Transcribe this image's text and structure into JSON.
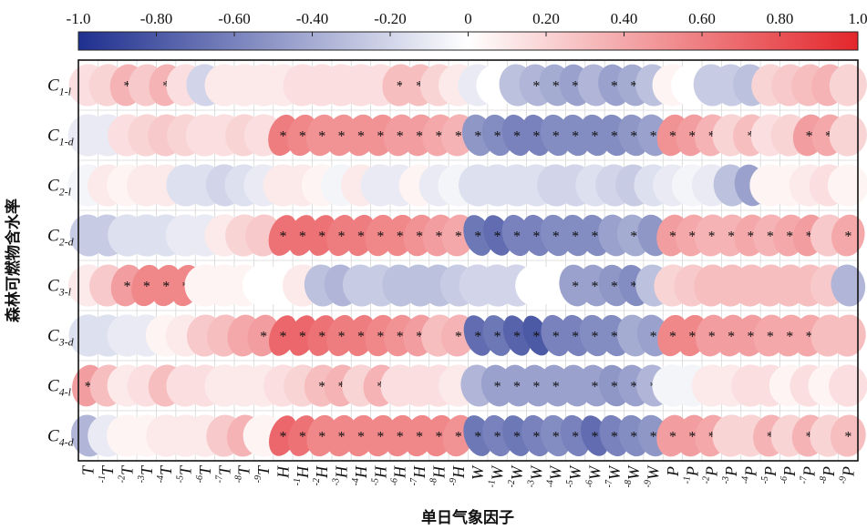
{
  "chart_data": {
    "type": "heatmap",
    "xlabel": "单日气象因子",
    "ylabel": "森林可燃物含水率",
    "colorbar": {
      "ticks": [
        "-1.0",
        "-0.80",
        "-0.60",
        "-0.40",
        "-0.20",
        "0",
        "0.20",
        "0.40",
        "0.60",
        "0.80",
        "1.0"
      ],
      "range": [
        -1,
        1
      ],
      "colors": {
        "neg": "#1f2f8f",
        "mid": "#ffffff",
        "pos": "#e3262b"
      }
    },
    "rows": [
      {
        "base": "C",
        "sub": "1-l"
      },
      {
        "base": "C",
        "sub": "1-d"
      },
      {
        "base": "C",
        "sub": "2-l"
      },
      {
        "base": "C",
        "sub": "2-d"
      },
      {
        "base": "C",
        "sub": "3-l"
      },
      {
        "base": "C",
        "sub": "3-d"
      },
      {
        "base": "C",
        "sub": "4-l"
      },
      {
        "base": "C",
        "sub": "4-d"
      }
    ],
    "columns": [
      {
        "base": "T",
        "sup": ""
      },
      {
        "base": "T",
        "sup": "-1"
      },
      {
        "base": "T",
        "sup": "-2"
      },
      {
        "base": "T",
        "sup": "-3"
      },
      {
        "base": "T",
        "sup": "-4"
      },
      {
        "base": "T",
        "sup": "-5"
      },
      {
        "base": "T",
        "sup": "-6"
      },
      {
        "base": "T",
        "sup": "-7"
      },
      {
        "base": "T",
        "sup": "-8"
      },
      {
        "base": "T",
        "sup": "-9"
      },
      {
        "base": "H",
        "sup": ""
      },
      {
        "base": "H",
        "sup": "-1"
      },
      {
        "base": "H",
        "sup": "-2"
      },
      {
        "base": "H",
        "sup": "-3"
      },
      {
        "base": "H",
        "sup": "-4"
      },
      {
        "base": "H",
        "sup": "-5"
      },
      {
        "base": "H",
        "sup": "-6"
      },
      {
        "base": "H",
        "sup": "-7"
      },
      {
        "base": "H",
        "sup": "-8"
      },
      {
        "base": "H",
        "sup": "-9"
      },
      {
        "base": "W",
        "sup": ""
      },
      {
        "base": "W",
        "sup": "-1"
      },
      {
        "base": "W",
        "sup": "-2"
      },
      {
        "base": "W",
        "sup": "-3"
      },
      {
        "base": "W",
        "sup": "-4"
      },
      {
        "base": "W",
        "sup": "-5"
      },
      {
        "base": "W",
        "sup": "-6"
      },
      {
        "base": "W",
        "sup": "-7"
      },
      {
        "base": "W",
        "sup": "-8"
      },
      {
        "base": "W",
        "sup": "-9"
      },
      {
        "base": "P",
        "sup": ""
      },
      {
        "base": "P",
        "sup": "-1"
      },
      {
        "base": "P",
        "sup": "-2"
      },
      {
        "base": "P",
        "sup": "-3"
      },
      {
        "base": "P",
        "sup": "-4"
      },
      {
        "base": "P",
        "sup": "-5"
      },
      {
        "base": "P",
        "sup": "-6"
      },
      {
        "base": "P",
        "sup": "-7"
      },
      {
        "base": "P",
        "sup": "-8"
      },
      {
        "base": "P",
        "sup": "-9"
      }
    ],
    "values": [
      [
        0.15,
        0.2,
        0.35,
        0.25,
        0.35,
        0.15,
        -0.2,
        0.1,
        0.1,
        0.1,
        0.1,
        0.15,
        0.15,
        0.15,
        0.15,
        0.15,
        0.3,
        0.3,
        0.2,
        0.1,
        -0.1,
        0.0,
        -0.3,
        -0.35,
        -0.4,
        -0.45,
        -0.35,
        -0.45,
        -0.4,
        -0.3,
        0.05,
        0.0,
        -0.25,
        -0.25,
        -0.3,
        0.2,
        0.25,
        0.3,
        0.35,
        0.2
      ],
      [
        -0.1,
        -0.1,
        0.15,
        0.2,
        0.25,
        0.2,
        0.15,
        0.15,
        0.2,
        0.15,
        0.6,
        0.55,
        0.5,
        0.5,
        0.5,
        0.5,
        0.45,
        0.45,
        0.4,
        0.35,
        -0.5,
        -0.55,
        -0.6,
        -0.6,
        -0.55,
        -0.55,
        -0.55,
        -0.55,
        -0.5,
        -0.45,
        0.5,
        0.45,
        0.35,
        0.2,
        0.3,
        0.15,
        0.2,
        0.45,
        0.4,
        0.2
      ],
      [
        -0.05,
        0.1,
        0.05,
        0.1,
        0.1,
        -0.15,
        -0.15,
        -0.2,
        -0.15,
        -0.1,
        0.1,
        0.1,
        0.05,
        -0.05,
        0.1,
        -0.1,
        -0.1,
        0.05,
        -0.1,
        -0.05,
        -0.15,
        -0.15,
        -0.15,
        -0.15,
        -0.2,
        -0.2,
        -0.15,
        -0.2,
        -0.25,
        -0.15,
        -0.1,
        -0.05,
        -0.1,
        -0.3,
        -0.45,
        0.05,
        0.05,
        0.1,
        0.15,
        0.05
      ],
      [
        -0.25,
        -0.25,
        -0.15,
        -0.15,
        -0.15,
        -0.1,
        -0.1,
        0.1,
        0.2,
        0.25,
        0.65,
        0.65,
        0.65,
        0.6,
        0.6,
        0.55,
        0.55,
        0.5,
        0.45,
        0.4,
        -0.65,
        -0.7,
        -0.6,
        -0.6,
        -0.55,
        -0.55,
        -0.55,
        -0.45,
        -0.4,
        -0.5,
        0.45,
        0.4,
        0.35,
        0.35,
        0.4,
        0.35,
        0.4,
        0.45,
        0.25,
        0.4
      ],
      [
        0.1,
        0.25,
        0.45,
        0.55,
        0.55,
        0.55,
        0.05,
        0.05,
        0.05,
        0.0,
        0.0,
        0.1,
        -0.3,
        -0.35,
        -0.25,
        -0.25,
        -0.3,
        -0.3,
        -0.3,
        -0.25,
        -0.2,
        -0.2,
        -0.2,
        0.0,
        0.0,
        -0.45,
        -0.45,
        -0.5,
        -0.55,
        -0.3,
        0.2,
        0.25,
        0.3,
        0.3,
        0.3,
        0.3,
        0.3,
        0.3,
        0.25,
        -0.35
      ],
      [
        -0.15,
        -0.15,
        -0.1,
        -0.1,
        0.05,
        0.1,
        0.25,
        0.3,
        0.4,
        0.45,
        0.7,
        0.7,
        0.65,
        0.6,
        0.6,
        0.55,
        0.5,
        0.45,
        0.3,
        0.35,
        -0.7,
        -0.65,
        -0.75,
        -0.8,
        -0.6,
        -0.6,
        -0.55,
        -0.55,
        -0.4,
        -0.45,
        0.55,
        0.55,
        0.45,
        0.45,
        0.45,
        0.4,
        0.4,
        0.4,
        0.3,
        0.3
      ],
      [
        0.45,
        0.3,
        0.1,
        0.15,
        0.3,
        0.15,
        0.15,
        0.1,
        0.1,
        0.1,
        0.15,
        0.2,
        0.3,
        0.35,
        0.2,
        0.35,
        0.15,
        0.15,
        0.15,
        0.1,
        -0.35,
        -0.45,
        -0.45,
        -0.45,
        -0.45,
        -0.45,
        -0.45,
        -0.5,
        -0.45,
        -0.35,
        -0.05,
        -0.05,
        0.1,
        0.1,
        0.15,
        0.15,
        0.05,
        0.15,
        0.05,
        0.15
      ],
      [
        -0.35,
        -0.1,
        0.05,
        0.05,
        0.1,
        0.1,
        0.1,
        0.25,
        0.35,
        0.05,
        0.7,
        0.65,
        0.55,
        0.55,
        0.55,
        0.55,
        0.55,
        0.55,
        0.55,
        0.5,
        -0.65,
        -0.6,
        -0.65,
        -0.6,
        -0.55,
        -0.6,
        -0.7,
        -0.6,
        -0.55,
        -0.5,
        0.45,
        0.45,
        0.4,
        0.2,
        0.2,
        0.35,
        0.2,
        0.35,
        0.2,
        0.3
      ]
    ],
    "significant": [
      [
        2,
        4,
        16,
        17,
        23,
        24,
        25,
        27,
        28
      ],
      [
        10,
        11,
        12,
        13,
        14,
        15,
        16,
        17,
        18,
        19,
        20,
        21,
        22,
        23,
        24,
        25,
        26,
        27,
        28,
        29,
        30,
        31,
        32,
        34,
        37,
        38
      ],
      [],
      [
        10,
        11,
        12,
        13,
        14,
        15,
        16,
        17,
        18,
        19,
        20,
        21,
        22,
        23,
        24,
        25,
        26,
        28,
        30,
        31,
        32,
        33,
        34,
        35,
        36,
        37,
        39
      ],
      [
        2,
        3,
        4,
        5,
        25,
        26,
        27,
        28
      ],
      [
        9,
        10,
        11,
        12,
        13,
        14,
        15,
        16,
        17,
        19,
        20,
        21,
        22,
        23,
        24,
        25,
        26,
        27,
        29,
        30,
        31,
        32,
        33,
        34,
        35,
        36,
        37
      ],
      [
        0,
        12,
        13,
        15,
        21,
        22,
        23,
        24,
        26,
        27,
        28,
        29
      ],
      [
        10,
        11,
        12,
        13,
        14,
        15,
        16,
        17,
        18,
        19,
        20,
        21,
        22,
        23,
        24,
        25,
        26,
        27,
        28,
        29,
        30,
        31,
        32,
        35,
        37,
        39
      ]
    ]
  }
}
